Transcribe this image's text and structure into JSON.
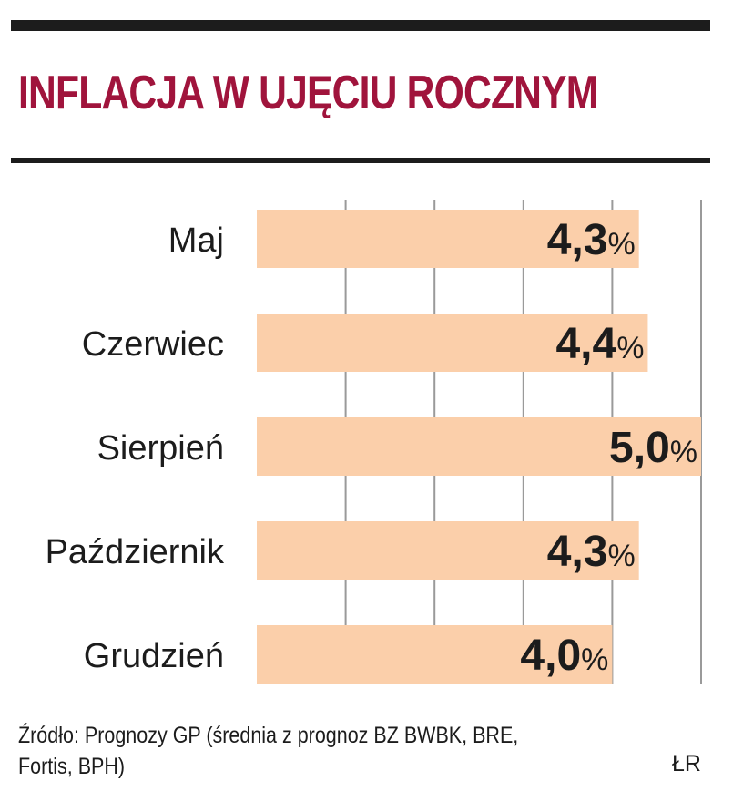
{
  "title": "INFLACJA W UJĘCIU ROCZNYM",
  "source_note": "Źródło: Prognozy GP (średnia z prognoz BZ BWBK, BRE, Fortis, BPH)",
  "credit": "ŁR",
  "colors": {
    "title": "#a0143c",
    "bar": "#fbcfaa",
    "grid": "#9a9a9a",
    "rule": "#1c1c1c"
  },
  "chart_data": {
    "type": "bar",
    "orientation": "horizontal",
    "categories": [
      "Maj",
      "Czerwiec",
      "Sierpień",
      "Październik",
      "Grudzień"
    ],
    "values": [
      4.3,
      4.4,
      5.0,
      4.3,
      4.0
    ],
    "value_labels": [
      "4,3",
      "4,4",
      "5,0",
      "4,3",
      "4,0"
    ],
    "unit": "%",
    "xlim": [
      0,
      5.0
    ],
    "grid": "vertical"
  }
}
